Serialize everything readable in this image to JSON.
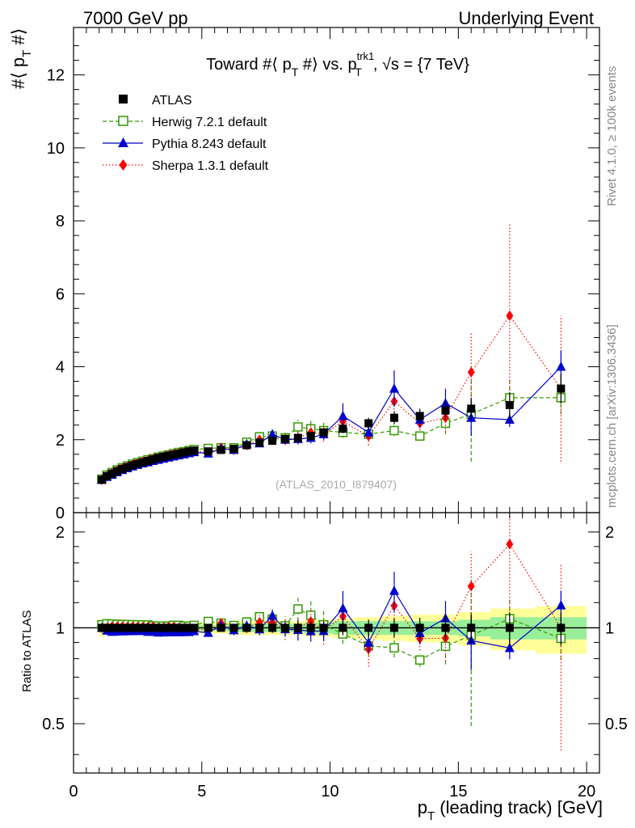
{
  "header": {
    "left": "7000 GeV pp",
    "right": "Underlying Event"
  },
  "side_labels": {
    "rivet": "Rivet 4.1.0, ≥ 100k events",
    "mcplots": "mcplots.cern.ch [arXiv:1306.3436]"
  },
  "chart_data": {
    "type": "scatter",
    "title": "Toward #⟨ p_T #⟩ vs. p_T^trk1, √s = {7 TeV}",
    "title_parts": {
      "a": "Toward #⟨ p",
      "a_sub": "T",
      "b": " #⟩ vs. p",
      "b_sup": "trk1",
      "b_sub": "T",
      "c": ", √s = {7 TeV}"
    },
    "ylabel_parts": {
      "a": "#⟨ p",
      "sub": "T",
      "b": " #⟩"
    },
    "xlabel_parts": {
      "a": "p",
      "sub": "T",
      "b": " (leading track) [GeV]"
    },
    "ratio_ylabel": "Ratio to ATLAS",
    "watermark": "(ATLAS_2010_I879407)",
    "xlim": [
      0,
      20.5
    ],
    "ylim": [
      0,
      13.3
    ],
    "ratio_ylim": [
      0.35,
      2.3
    ],
    "xticks": [
      "0",
      "5",
      "10",
      "15",
      "20"
    ],
    "yticks": [
      "0",
      "2",
      "4",
      "6",
      "8",
      "10",
      "12"
    ],
    "ratio_yticks": [
      "0.5",
      "1",
      "2"
    ],
    "x": [
      1.1,
      1.3,
      1.5,
      1.7,
      1.9,
      2.1,
      2.3,
      2.5,
      2.7,
      2.9,
      3.1,
      3.3,
      3.5,
      3.7,
      3.9,
      4.1,
      4.3,
      4.5,
      4.7,
      5.25,
      5.75,
      6.25,
      6.75,
      7.25,
      7.75,
      8.25,
      8.75,
      9.25,
      9.75,
      10.5,
      11.5,
      12.5,
      13.5,
      14.5,
      15.5,
      17.0,
      19.0
    ],
    "series": [
      {
        "name": "ATLAS",
        "color": "#000000",
        "values": [
          0.9,
          1.0,
          1.07,
          1.14,
          1.2,
          1.25,
          1.3,
          1.34,
          1.38,
          1.42,
          1.46,
          1.5,
          1.53,
          1.56,
          1.59,
          1.62,
          1.65,
          1.68,
          1.7,
          1.68,
          1.72,
          1.75,
          1.85,
          1.92,
          1.97,
          2.02,
          2.05,
          2.1,
          2.2,
          2.3,
          2.45,
          2.6,
          2.65,
          2.8,
          2.85,
          2.95,
          3.4
        ],
        "errors": [
          0.02,
          0.02,
          0.02,
          0.02,
          0.02,
          0.02,
          0.02,
          0.02,
          0.02,
          0.02,
          0.03,
          0.03,
          0.03,
          0.03,
          0.03,
          0.03,
          0.03,
          0.03,
          0.03,
          0.04,
          0.04,
          0.05,
          0.05,
          0.06,
          0.07,
          0.08,
          0.09,
          0.1,
          0.1,
          0.12,
          0.15,
          0.18,
          0.2,
          0.25,
          0.3,
          0.35,
          0.4
        ]
      },
      {
        "name": "Herwig 7.2.1 default",
        "color": "#339900",
        "values": [
          0.92,
          1.03,
          1.1,
          1.17,
          1.23,
          1.28,
          1.33,
          1.37,
          1.41,
          1.45,
          1.48,
          1.52,
          1.55,
          1.58,
          1.62,
          1.65,
          1.67,
          1.7,
          1.73,
          1.76,
          1.78,
          1.78,
          1.93,
          2.08,
          2.1,
          2.05,
          2.35,
          2.3,
          2.25,
          2.2,
          2.15,
          2.25,
          2.1,
          2.45,
          2.7,
          3.15,
          3.15
        ],
        "errors": [
          0.02,
          0.02,
          0.02,
          0.02,
          0.02,
          0.02,
          0.02,
          0.02,
          0.02,
          0.03,
          0.03,
          0.03,
          0.03,
          0.03,
          0.03,
          0.03,
          0.03,
          0.03,
          0.03,
          0.04,
          0.05,
          0.06,
          0.07,
          0.1,
          0.15,
          0.15,
          0.2,
          0.25,
          0.25,
          0.15,
          0.15,
          0.15,
          0.1,
          0.3,
          1.3,
          0.5,
          0.45
        ]
      },
      {
        "name": "Pythia 8.243 default",
        "color": "#0000cc",
        "values": [
          0.9,
          0.98,
          1.04,
          1.11,
          1.17,
          1.22,
          1.27,
          1.31,
          1.35,
          1.38,
          1.42,
          1.45,
          1.48,
          1.51,
          1.54,
          1.57,
          1.6,
          1.63,
          1.66,
          1.62,
          1.75,
          1.72,
          1.88,
          1.9,
          2.15,
          2.0,
          2.02,
          2.05,
          2.15,
          2.65,
          2.2,
          3.4,
          2.55,
          3.0,
          2.6,
          2.55,
          4.0
        ],
        "errors": [
          0.02,
          0.02,
          0.02,
          0.02,
          0.02,
          0.02,
          0.02,
          0.02,
          0.02,
          0.03,
          0.03,
          0.03,
          0.03,
          0.03,
          0.03,
          0.03,
          0.03,
          0.03,
          0.03,
          0.04,
          0.05,
          0.06,
          0.07,
          0.08,
          0.1,
          0.1,
          0.15,
          0.15,
          0.15,
          0.35,
          0.15,
          0.5,
          0.2,
          0.4,
          0.5,
          0.2,
          0.45
        ]
      },
      {
        "name": "Sherpa 1.3.1 default",
        "color": "#ff0000",
        "values": [
          0.9,
          1.0,
          1.08,
          1.15,
          1.21,
          1.26,
          1.31,
          1.35,
          1.39,
          1.43,
          1.47,
          1.5,
          1.53,
          1.57,
          1.6,
          1.62,
          1.64,
          1.66,
          1.68,
          1.65,
          1.78,
          1.72,
          1.85,
          2.0,
          2.05,
          2.0,
          2.05,
          2.2,
          2.15,
          2.5,
          2.1,
          3.05,
          2.45,
          2.6,
          3.85,
          5.4,
          3.4
        ],
        "errors": [
          0.02,
          0.02,
          0.02,
          0.02,
          0.02,
          0.02,
          0.02,
          0.02,
          0.02,
          0.03,
          0.03,
          0.03,
          0.03,
          0.03,
          0.03,
          0.03,
          0.03,
          0.03,
          0.03,
          0.04,
          0.05,
          0.06,
          0.07,
          0.1,
          0.15,
          0.15,
          0.15,
          0.2,
          0.2,
          0.3,
          0.25,
          0.4,
          0.2,
          0.4,
          1.1,
          2.5,
          2.0
        ]
      }
    ],
    "ratio_band": {
      "inner_halfwidth": [
        0.03,
        0.03,
        0.02,
        0.02,
        0.02,
        0.02,
        0.02,
        0.02,
        0.02,
        0.02,
        0.02,
        0.02,
        0.02,
        0.02,
        0.02,
        0.02,
        0.02,
        0.02,
        0.02,
        0.02,
        0.02,
        0.03,
        0.03,
        0.03,
        0.03,
        0.03,
        0.03,
        0.04,
        0.04,
        0.05,
        0.05,
        0.05,
        0.05,
        0.05,
        0.06,
        0.08,
        0.08
      ],
      "outer_halfwidth": [
        0.06,
        0.05,
        0.04,
        0.04,
        0.04,
        0.04,
        0.04,
        0.04,
        0.04,
        0.04,
        0.04,
        0.04,
        0.04,
        0.04,
        0.04,
        0.04,
        0.04,
        0.04,
        0.04,
        0.04,
        0.04,
        0.05,
        0.05,
        0.05,
        0.05,
        0.05,
        0.05,
        0.06,
        0.06,
        0.07,
        0.08,
        0.09,
        0.1,
        0.1,
        0.12,
        0.15,
        0.17
      ],
      "inner_color": "#99ee99",
      "outer_color": "#ffff99"
    },
    "legend_position": "top-left"
  }
}
